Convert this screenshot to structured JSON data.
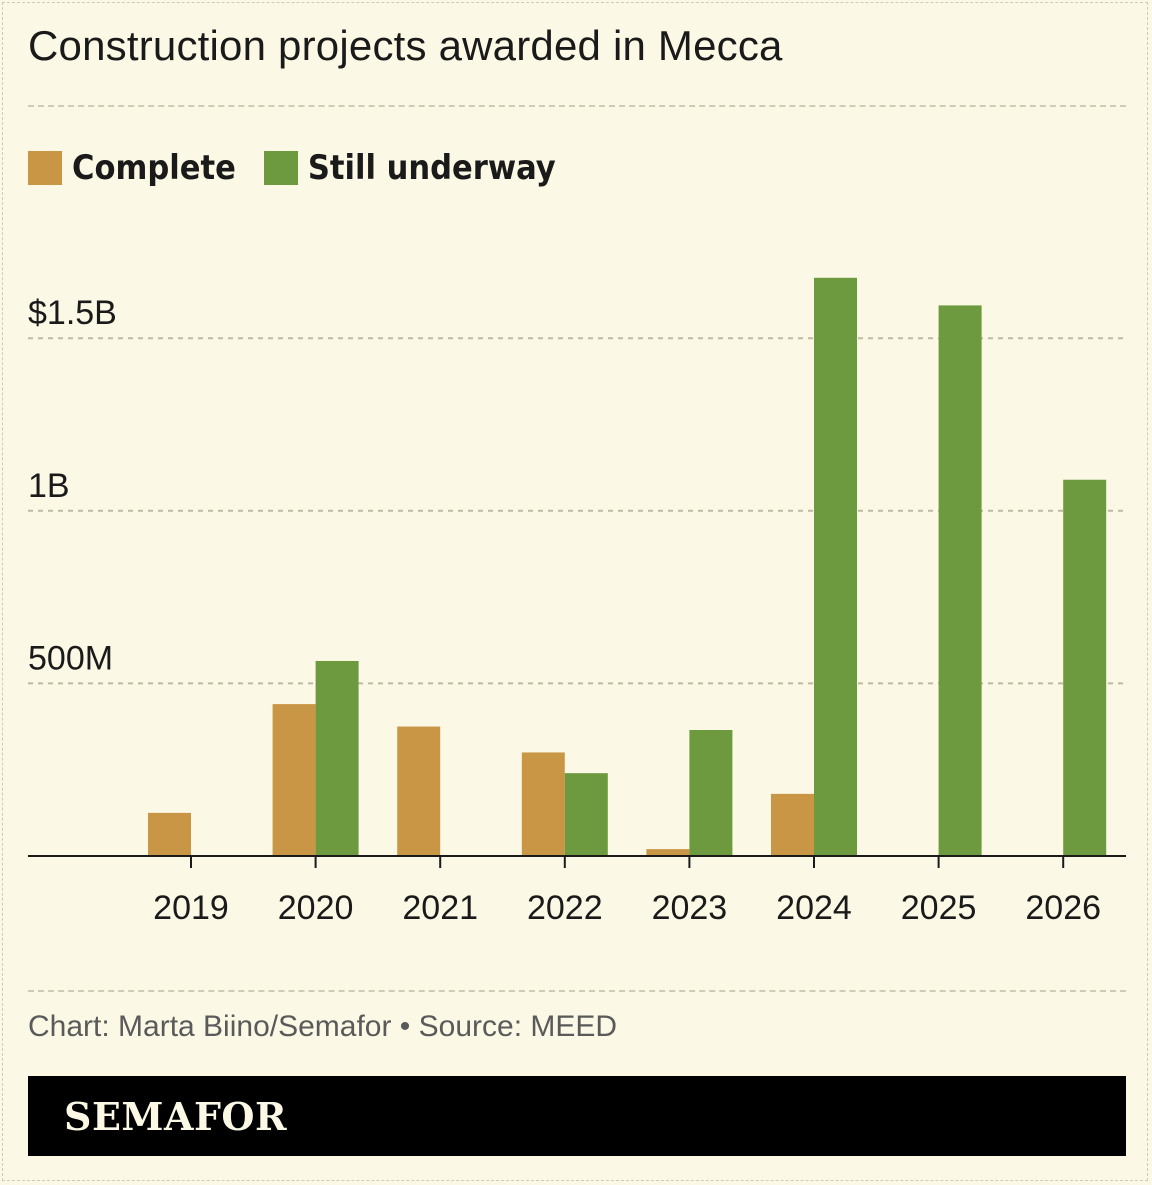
{
  "title": "Construction projects awarded in Mecca",
  "legend": [
    {
      "label": "Complete",
      "color": "#c99646"
    },
    {
      "label": "Still underway",
      "color": "#6e9a3f"
    }
  ],
  "chart_data": {
    "type": "bar",
    "categories": [
      "2019",
      "2020",
      "2021",
      "2022",
      "2023",
      "2024",
      "2025",
      "2026"
    ],
    "series": [
      {
        "name": "Complete",
        "color": "#c99646",
        "values": [
          125,
          440,
          375,
          300,
          20,
          180,
          0,
          0
        ]
      },
      {
        "name": "Still underway",
        "color": "#6e9a3f",
        "values": [
          0,
          565,
          0,
          240,
          365,
          1675,
          1595,
          1090
        ]
      }
    ],
    "unit": "USD millions",
    "yticks": [
      {
        "value": 500,
        "label": "500M"
      },
      {
        "value": 1000,
        "label": "1B"
      },
      {
        "value": 1500,
        "label": "$1.5B"
      }
    ],
    "ylim": [
      0,
      1750
    ],
    "grid": true,
    "legend_position": "top-left"
  },
  "source": "Chart: Marta Biino/Semafor • Source: MEED",
  "logo": "SEMAFOR"
}
